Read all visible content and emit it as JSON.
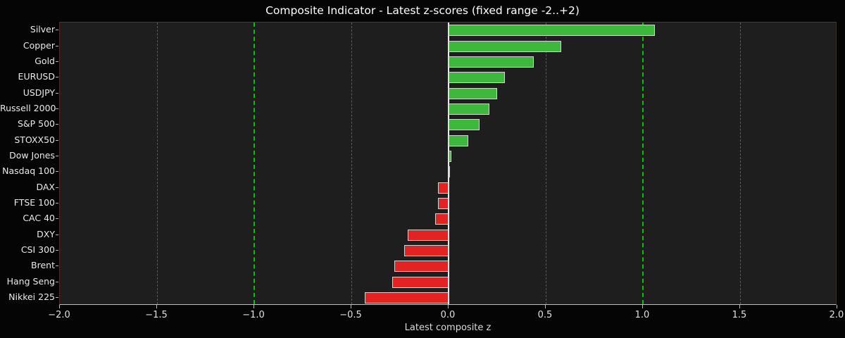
{
  "title": "Composite Indicator - Latest z-scores (fixed range -2..+2)",
  "chart_data": {
    "type": "bar",
    "orientation": "horizontal",
    "title": "Composite Indicator - Latest z-scores (fixed range -2..+2)",
    "xlabel": "Latest composite z",
    "categories": [
      "Silver",
      "Copper",
      "Gold",
      "EURUSD",
      "USDJPY",
      "Russell 2000",
      "S&P 500",
      "STOXX50",
      "Dow Jones",
      "Nasdaq 100",
      "DAX",
      "FTSE 100",
      "CAC 40",
      "DXY",
      "CSI 300",
      "Brent",
      "Hang Seng",
      "Nikkei 225"
    ],
    "values": [
      1.06,
      0.58,
      0.44,
      0.29,
      0.25,
      0.21,
      0.16,
      0.1,
      0.015,
      0.0,
      -0.055,
      -0.055,
      -0.07,
      -0.21,
      -0.23,
      -0.28,
      -0.29,
      -0.43
    ],
    "xlim": [
      -2.0,
      2.0
    ],
    "xticks": [
      -2.0,
      -1.5,
      -1.0,
      -0.5,
      0.0,
      0.5,
      1.0,
      1.5,
      2.0
    ],
    "xtick_labels": [
      "−2.0",
      "−1.5",
      "−1.0",
      "−0.5",
      "0.0",
      "0.5",
      "1.0",
      "1.5",
      "2.0"
    ],
    "grid": true,
    "gridline_xs": [
      -1.5,
      -0.5,
      0.5,
      1.5
    ],
    "reference_lines": [
      {
        "x": -1.0,
        "style": "dashed",
        "color": "#00c400"
      },
      {
        "x": 1.0,
        "style": "dashed",
        "color": "#00c400"
      },
      {
        "x": 0.0,
        "style": "solid",
        "color": "#ededed"
      }
    ],
    "legend_position": "none",
    "colors": {
      "positive_bar": "#3db83d",
      "negative_bar": "#e32222",
      "bar_edge": "#d3d3d3",
      "plot_background": "#1e1e1e",
      "figure_background": "#050505",
      "gridline": "#5a5a5a",
      "reference_green": "#00c400",
      "zero_line": "#ededed",
      "spine_left_right": "#5e2522",
      "spine_bottom": "#c0c0c0",
      "title_text": "#ffffff",
      "tick_text": "#e0e0e0"
    }
  }
}
